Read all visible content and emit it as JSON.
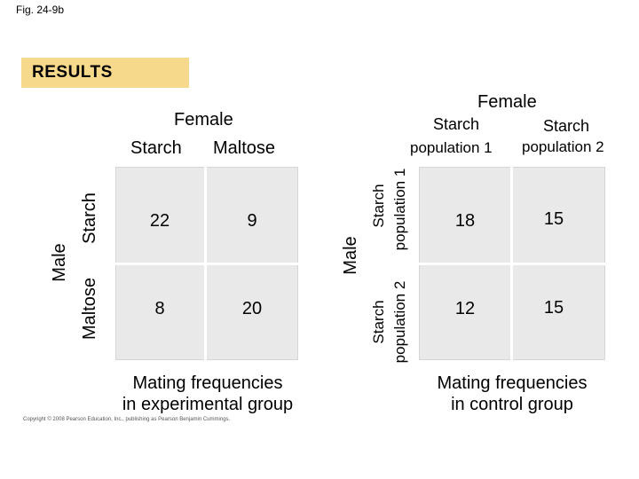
{
  "fig_label": "Fig. 24-9b",
  "results_label": "RESULTS",
  "experimental": {
    "female": "Female",
    "col_starch": "Starch",
    "col_maltose": "Maltose",
    "male": "Male",
    "row_starch": "Starch",
    "row_maltose": "Maltose",
    "cells": [
      [
        "22",
        "9"
      ],
      [
        "8",
        "20"
      ]
    ],
    "caption_line1": "Mating frequencies",
    "caption_line2": "in experimental group"
  },
  "control": {
    "female": "Female",
    "col1_line1": "Starch",
    "col1_line2": "population 1",
    "col2_line1": "Starch",
    "col2_line2": "population 2",
    "male": "Male",
    "row1_line1": "Starch",
    "row1_line2": "population 1",
    "row2_line1": "Starch",
    "row2_line2": "population 2",
    "cells": [
      [
        "18",
        "15"
      ],
      [
        "12",
        "15"
      ]
    ],
    "caption_line1": "Mating frequencies",
    "caption_line2": "in control group"
  },
  "copyright": "Copyright © 2008 Pearson Education, Inc., publishing as Pearson Benjamin Cummings."
}
